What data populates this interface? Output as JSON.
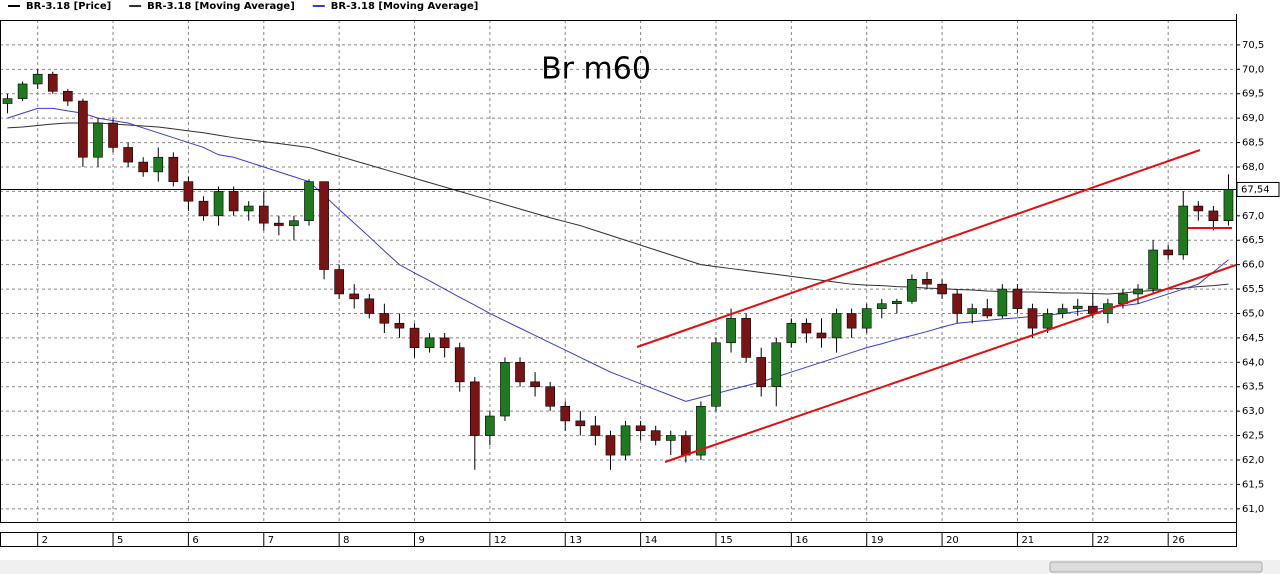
{
  "chart_data": {
    "type": "candlestick",
    "title": "Br m60",
    "candles": {
      "name": "BR-3.18 [Price]",
      "color": "#000000",
      "up_color": "#1f7a1f",
      "down_color": "#7a1414",
      "open": [
        69.3,
        69.4,
        69.7,
        69.9,
        69.55,
        69.35,
        68.2,
        68.9,
        68.4,
        68.1,
        67.9,
        68.2,
        67.7,
        67.3,
        67.0,
        67.5,
        67.1,
        67.2,
        66.85,
        66.8,
        66.9,
        67.7,
        65.9,
        65.4,
        65.3,
        65.0,
        64.8,
        64.7,
        64.3,
        64.5,
        64.3,
        63.6,
        62.5,
        62.9,
        64.0,
        63.6,
        63.5,
        63.1,
        62.8,
        62.7,
        62.5,
        62.1,
        62.7,
        62.6,
        62.4,
        62.5,
        62.1,
        63.1,
        64.4,
        64.9,
        64.1,
        63.5,
        64.4,
        64.8,
        64.6,
        64.5,
        65.0,
        64.7,
        65.1,
        65.2,
        65.25,
        65.7,
        65.6,
        65.4,
        65.0,
        65.1,
        64.95,
        65.5,
        65.1,
        64.7,
        65.0,
        65.1,
        65.15,
        65.0,
        65.2,
        65.4,
        65.5,
        66.3,
        66.2,
        67.2,
        67.1,
        66.9
      ],
      "high": [
        69.5,
        69.75,
        70.0,
        69.95,
        69.6,
        69.4,
        69.0,
        69.0,
        68.5,
        68.2,
        68.4,
        68.3,
        67.8,
        67.4,
        67.6,
        67.6,
        67.3,
        67.5,
        67.0,
        67.0,
        67.75,
        67.7,
        66.0,
        65.6,
        65.4,
        65.2,
        65.0,
        64.8,
        64.6,
        64.6,
        64.4,
        63.7,
        63.0,
        64.1,
        64.1,
        63.8,
        63.6,
        63.2,
        63.0,
        62.9,
        62.6,
        62.8,
        62.8,
        62.7,
        62.6,
        62.6,
        63.2,
        64.5,
        65.1,
        65.0,
        64.3,
        64.5,
        64.9,
        64.9,
        64.9,
        65.1,
        65.1,
        65.2,
        65.3,
        65.3,
        65.8,
        65.85,
        65.7,
        65.5,
        65.2,
        65.3,
        65.6,
        65.6,
        65.2,
        65.1,
        65.2,
        65.3,
        65.4,
        65.3,
        65.5,
        65.6,
        66.5,
        66.4,
        67.5,
        67.3,
        67.2,
        67.85
      ],
      "low": [
        69.1,
        69.35,
        69.6,
        69.5,
        69.25,
        68.0,
        68.0,
        68.3,
        68.0,
        67.8,
        67.7,
        67.6,
        67.1,
        66.9,
        66.8,
        67.0,
        66.9,
        66.7,
        66.6,
        66.5,
        66.8,
        65.7,
        65.3,
        65.1,
        64.9,
        64.6,
        64.5,
        64.1,
        64.2,
        64.1,
        63.4,
        61.8,
        62.3,
        62.8,
        63.5,
        63.3,
        63.0,
        62.6,
        62.5,
        62.3,
        61.8,
        62.0,
        62.4,
        62.3,
        62.1,
        61.95,
        62.0,
        63.0,
        64.2,
        64.0,
        63.3,
        63.1,
        64.3,
        64.4,
        64.3,
        64.2,
        64.5,
        64.6,
        64.9,
        65.0,
        65.2,
        65.5,
        65.3,
        64.8,
        64.8,
        64.9,
        64.9,
        65.0,
        64.5,
        64.6,
        64.9,
        64.95,
        64.9,
        64.8,
        65.1,
        65.2,
        65.4,
        66.1,
        66.1,
        66.9,
        66.7,
        66.8
      ],
      "close": [
        69.4,
        69.7,
        69.9,
        69.55,
        69.35,
        68.2,
        68.9,
        68.4,
        68.1,
        67.9,
        68.2,
        67.7,
        67.3,
        67.0,
        67.5,
        67.1,
        67.2,
        66.85,
        66.8,
        66.9,
        67.7,
        65.9,
        65.4,
        65.3,
        65.0,
        64.8,
        64.7,
        64.3,
        64.5,
        64.3,
        63.6,
        62.5,
        62.9,
        64.0,
        63.6,
        63.5,
        63.1,
        62.8,
        62.7,
        62.5,
        62.1,
        62.7,
        62.6,
        62.4,
        62.5,
        62.1,
        63.1,
        64.4,
        64.9,
        64.1,
        63.5,
        64.4,
        64.8,
        64.6,
        64.5,
        65.0,
        64.7,
        65.1,
        65.2,
        65.25,
        65.7,
        65.6,
        65.4,
        65.0,
        65.1,
        64.95,
        65.5,
        65.1,
        64.7,
        65.0,
        65.1,
        65.15,
        65.0,
        65.2,
        65.4,
        65.5,
        66.3,
        66.2,
        67.2,
        67.1,
        66.9,
        67.54
      ]
    },
    "series": [
      {
        "name": "BR-3.18 [Moving Average]",
        "color": "#303030",
        "values": [
          68.8,
          68.82,
          68.85,
          68.88,
          68.9,
          68.9,
          68.9,
          68.88,
          68.86,
          68.84,
          68.82,
          68.78,
          68.74,
          68.7,
          68.65,
          68.6,
          68.56,
          68.52,
          68.48,
          68.44,
          68.4,
          68.31,
          68.22,
          68.13,
          68.04,
          67.95,
          67.86,
          67.77,
          67.68,
          67.59,
          67.5,
          67.41,
          67.32,
          67.23,
          67.14,
          67.05,
          66.96,
          66.88,
          66.8,
          66.7,
          66.6,
          66.5,
          66.4,
          66.3,
          66.2,
          66.1,
          66.0,
          65.96,
          65.92,
          65.88,
          65.84,
          65.8,
          65.76,
          65.72,
          65.68,
          65.64,
          65.6,
          65.58,
          65.57,
          65.55,
          65.54,
          65.52,
          65.51,
          65.49,
          65.48,
          65.46,
          65.45,
          65.44,
          65.44,
          65.43,
          65.42,
          65.42,
          65.41,
          65.4,
          65.42,
          65.45,
          65.47,
          65.5,
          65.52,
          65.55,
          65.57,
          65.6
        ]
      },
      {
        "name": "BR-3.18 [Moving Average]",
        "color": "#3a3ad0",
        "values": [
          69.0,
          69.1,
          69.2,
          69.2,
          69.15,
          69.1,
          69.0,
          68.95,
          68.9,
          68.8,
          68.7,
          68.6,
          68.5,
          68.4,
          68.25,
          68.2,
          68.1,
          68.0,
          67.9,
          67.8,
          67.7,
          67.42,
          67.13,
          66.85,
          66.57,
          66.28,
          66.0,
          65.83,
          65.67,
          65.5,
          65.33,
          65.17,
          65.0,
          64.85,
          64.7,
          64.55,
          64.4,
          64.25,
          64.1,
          63.95,
          63.8,
          63.68,
          63.56,
          63.44,
          63.32,
          63.2,
          63.28,
          63.36,
          63.44,
          63.52,
          63.6,
          63.7,
          63.8,
          63.9,
          64.0,
          64.1,
          64.2,
          64.3,
          64.38,
          64.47,
          64.55,
          64.63,
          64.72,
          64.8,
          64.83,
          64.86,
          64.89,
          64.91,
          64.94,
          64.97,
          65.0,
          65.04,
          65.08,
          65.12,
          65.16,
          65.2,
          65.3,
          65.4,
          65.5,
          65.6,
          65.85,
          66.1
        ]
      }
    ],
    "last_price": {
      "value": 67.54,
      "label": "67,54"
    },
    "xlim": [
      0,
      82
    ],
    "xticks": [
      {
        "value": 2.5,
        "label": "2"
      },
      {
        "value": 7.5,
        "label": "5"
      },
      {
        "value": 12.5,
        "label": "6"
      },
      {
        "value": 17.5,
        "label": "7"
      },
      {
        "value": 22.5,
        "label": "8"
      },
      {
        "value": 27.5,
        "label": "9"
      },
      {
        "value": 32.5,
        "label": "12"
      },
      {
        "value": 37.5,
        "label": "13"
      },
      {
        "value": 42.5,
        "label": "14"
      },
      {
        "value": 47.5,
        "label": "15"
      },
      {
        "value": 52.5,
        "label": "16"
      },
      {
        "value": 57.5,
        "label": "19"
      },
      {
        "value": 62.5,
        "label": "20"
      },
      {
        "value": 67.5,
        "label": "21"
      },
      {
        "value": 72.5,
        "label": "22"
      },
      {
        "value": 77.5,
        "label": "26"
      }
    ],
    "ylim": [
      60.73,
      71.01
    ],
    "yticks": [
      {
        "value": 61.0,
        "label": "61,0"
      },
      {
        "value": 61.5,
        "label": "61,5"
      },
      {
        "value": 62.0,
        "label": "62,0"
      },
      {
        "value": 62.5,
        "label": "62,5"
      },
      {
        "value": 63.0,
        "label": "63,0"
      },
      {
        "value": 63.5,
        "label": "63,5"
      },
      {
        "value": 64.0,
        "label": "64,0"
      },
      {
        "value": 64.5,
        "label": "64,5"
      },
      {
        "value": 65.0,
        "label": "65,0"
      },
      {
        "value": 65.5,
        "label": "65,5"
      },
      {
        "value": 66.0,
        "label": "66,0"
      },
      {
        "value": 66.5,
        "label": "66,5"
      },
      {
        "value": 67.0,
        "label": "67,0"
      },
      {
        "value": 67.5,
        "label": "67,5"
      },
      {
        "value": 68.0,
        "label": "68,0"
      },
      {
        "value": 68.5,
        "label": "68,5"
      },
      {
        "value": 69.0,
        "label": "69,0"
      },
      {
        "value": 69.5,
        "label": "69,5"
      },
      {
        "value": 70.0,
        "label": "70,0"
      },
      {
        "value": 70.5,
        "label": "70,5"
      }
    ],
    "grid": true
  }
}
